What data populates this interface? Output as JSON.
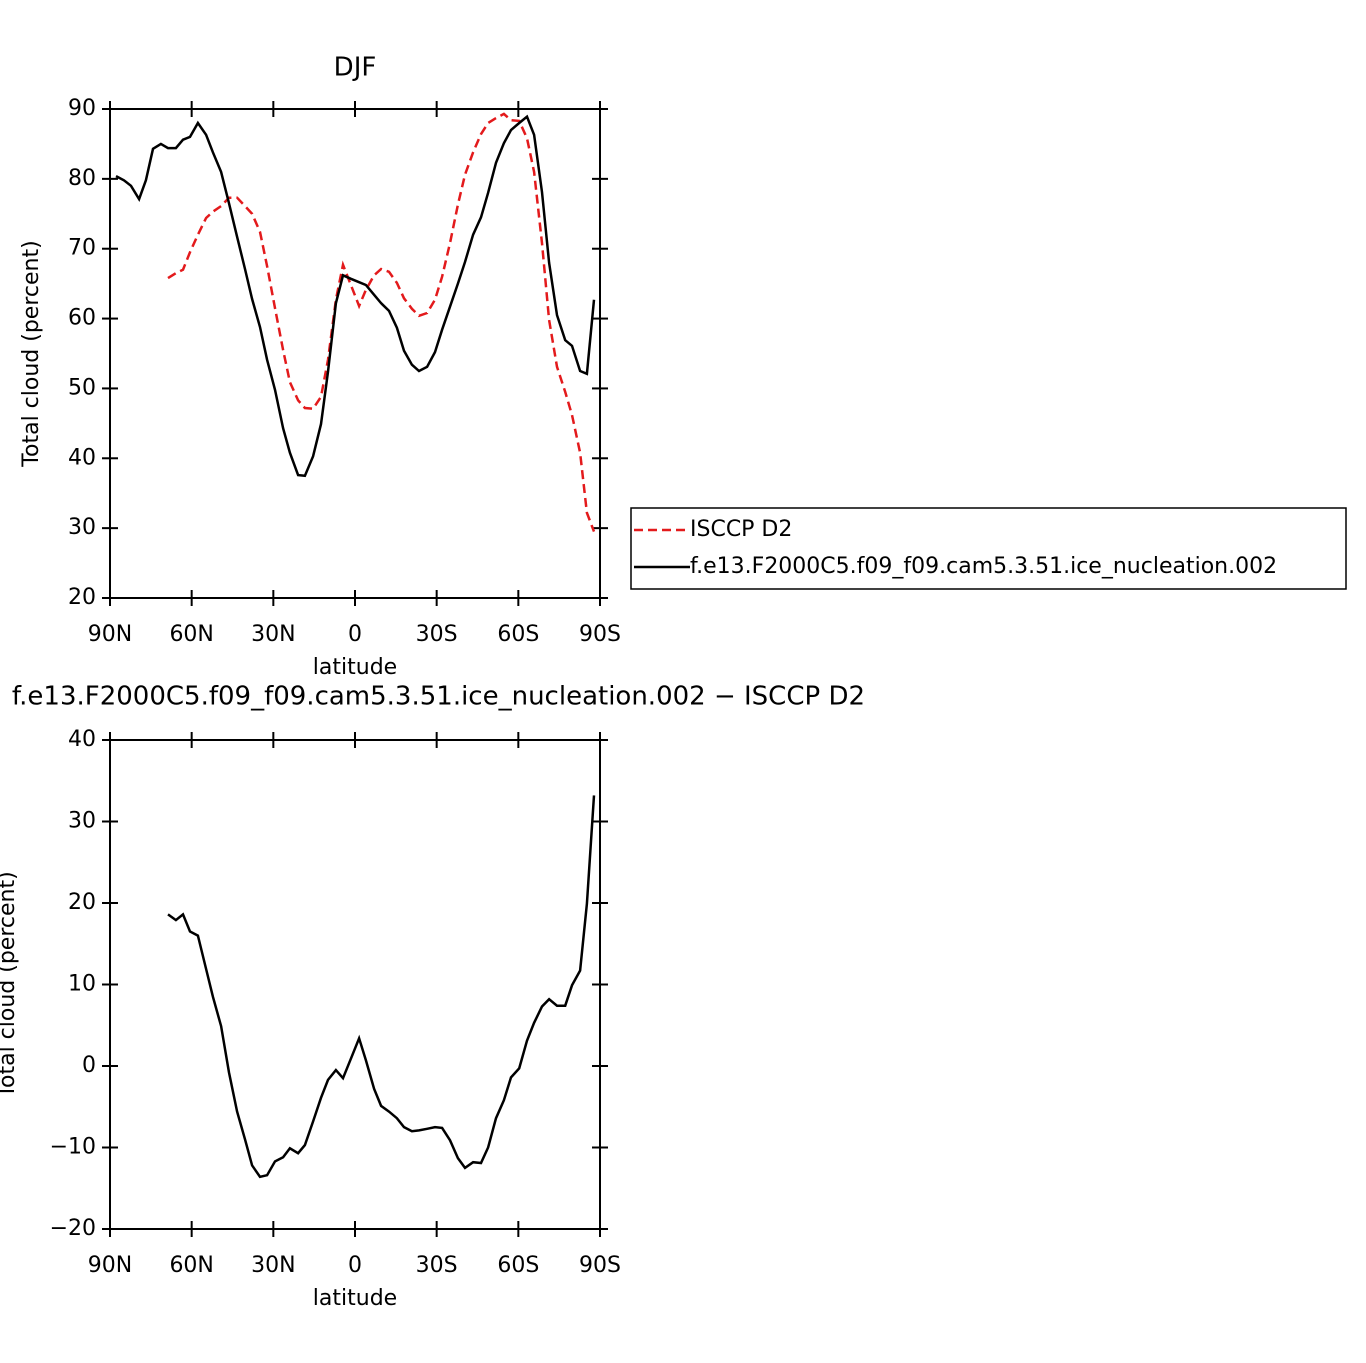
{
  "chart_data": [
    {
      "type": "line",
      "title": "DJF",
      "x_label": "latitude",
      "y_label": "Total cloud (percent)",
      "xlim": [
        90,
        -90
      ],
      "xticks": [
        {
          "value": 90,
          "label": "90N"
        },
        {
          "value": 60,
          "label": "60N"
        },
        {
          "value": 30,
          "label": "30N"
        },
        0,
        {
          "value": -30,
          "label": "30S"
        },
        {
          "value": -60,
          "label": "60S"
        },
        {
          "value": -90,
          "label": "90S"
        }
      ],
      "ylim": [
        20,
        90
      ],
      "yticks": [
        20,
        30,
        40,
        50,
        60,
        70,
        80,
        90
      ],
      "legend": "right",
      "x": [
        87.8,
        84.9,
        82.3,
        79.3,
        76.8,
        74.2,
        71.3,
        68.7,
        65.8,
        63.2,
        60.6,
        57.7,
        54.7,
        52.2,
        49.2,
        46.3,
        43.3,
        40.4,
        37.8,
        34.9,
        32.3,
        29.4,
        26.4,
        23.9,
        20.9,
        18.4,
        15.4,
        12.5,
        9.9,
        7.0,
        4.4,
        1.5,
        -1.5,
        -4.0,
        -7.0,
        -9.6,
        -12.5,
        -15.4,
        -18.0,
        -20.9,
        -23.5,
        -26.5,
        -29.4,
        -32.0,
        -34.9,
        -37.8,
        -40.4,
        -43.4,
        -46.3,
        -48.9,
        -51.8,
        -54.7,
        -57.3,
        -60.3,
        -63.2,
        -65.8,
        -68.7,
        -71.3,
        -74.2,
        -77.2,
        -79.7,
        -82.7,
        -85.2,
        -87.8
      ],
      "series": [
        {
          "name": "ISCCP D2",
          "color": "#e31a1c",
          "line_style": "dashed",
          "values": [
            null,
            null,
            null,
            null,
            null,
            null,
            null,
            65.8,
            66.5,
            67.0,
            69.5,
            72.0,
            74.4,
            75.3,
            76.1,
            77.3,
            77.3,
            76.1,
            75.0,
            72.4,
            67.5,
            61.5,
            55.5,
            50.9,
            48.3,
            47.2,
            47.1,
            48.8,
            54.1,
            62.7,
            67.7,
            64.8,
            61.8,
            64.1,
            66.2,
            67.1,
            66.7,
            65.1,
            62.9,
            61.4,
            60.4,
            60.8,
            62.7,
            66.0,
            70.8,
            76.3,
            80.6,
            83.8,
            86.4,
            88.0,
            88.7,
            89.3,
            88.4,
            88.3,
            85.8,
            81.0,
            70.8,
            59.8,
            53.1,
            49.5,
            46.2,
            40.8,
            32.2,
            29.5
          ]
        },
        {
          "name": "f.e13.F2000C5.f09_f09.cam5.3.51.ice_nucleation.002",
          "color": "#000000",
          "line_style": "solid",
          "values": [
            80.4,
            79.8,
            79.0,
            77.1,
            79.8,
            84.3,
            85.0,
            84.4,
            84.4,
            85.6,
            86.0,
            88.0,
            86.3,
            83.8,
            81.0,
            76.5,
            71.7,
            67.1,
            62.8,
            58.8,
            54.1,
            49.8,
            44.3,
            40.8,
            37.6,
            37.5,
            40.3,
            44.9,
            52.4,
            62.2,
            66.2,
            65.7,
            65.2,
            64.8,
            63.4,
            62.2,
            61.1,
            58.7,
            55.4,
            53.4,
            52.5,
            53.1,
            55.2,
            58.4,
            61.7,
            65.0,
            68.1,
            72.0,
            74.5,
            78.0,
            82.3,
            85.1,
            87.0,
            88.0,
            88.9,
            86.3,
            78.1,
            68.0,
            60.5,
            56.9,
            56.1,
            52.5,
            52.1,
            62.7
          ]
        }
      ]
    },
    {
      "type": "line",
      "title": "f.e13.F2000C5.f09_f09.cam5.3.51.ice_nucleation.002 − ISCCP D2",
      "x_label": "latitude",
      "y_label": "Total cloud (percent)",
      "xlim": [
        90,
        -90
      ],
      "xticks": [
        {
          "value": 90,
          "label": "90N"
        },
        {
          "value": 60,
          "label": "60N"
        },
        {
          "value": 30,
          "label": "30N"
        },
        0,
        {
          "value": -30,
          "label": "30S"
        },
        {
          "value": -60,
          "label": "60S"
        },
        {
          "value": -90,
          "label": "90S"
        }
      ],
      "ylim": [
        -20,
        40
      ],
      "yticks": [
        {
          "value": -20,
          "label": "−20"
        },
        {
          "value": -10,
          "label": "−10"
        },
        0,
        10,
        20,
        30,
        40
      ],
      "x": [
        87.8,
        84.9,
        82.3,
        79.3,
        76.8,
        74.2,
        71.3,
        68.7,
        65.8,
        63.2,
        60.6,
        57.7,
        54.7,
        52.2,
        49.2,
        46.3,
        43.3,
        40.4,
        37.8,
        34.9,
        32.3,
        29.4,
        26.4,
        23.9,
        20.9,
        18.4,
        15.4,
        12.5,
        9.9,
        7.0,
        4.4,
        1.5,
        -1.5,
        -4.0,
        -7.0,
        -9.6,
        -12.5,
        -15.4,
        -18.0,
        -20.9,
        -23.5,
        -26.5,
        -29.4,
        -32.0,
        -34.9,
        -37.8,
        -40.4,
        -43.4,
        -46.3,
        -48.9,
        -51.8,
        -54.7,
        -57.3,
        -60.3,
        -63.2,
        -65.8,
        -68.7,
        -71.3,
        -74.2,
        -77.2,
        -79.7,
        -82.7,
        -85.2,
        -87.8
      ],
      "series": [
        {
          "color": "#000000",
          "line_style": "solid",
          "values": [
            null,
            null,
            null,
            null,
            null,
            null,
            null,
            18.6,
            17.9,
            18.6,
            16.5,
            16.0,
            11.9,
            8.5,
            4.9,
            -0.8,
            -5.6,
            -9.0,
            -12.2,
            -13.6,
            -13.4,
            -11.7,
            -11.2,
            -10.1,
            -10.7,
            -9.7,
            -6.8,
            -3.9,
            -1.7,
            -0.5,
            -1.5,
            0.9,
            3.4,
            0.7,
            -2.8,
            -4.9,
            -5.6,
            -6.4,
            -7.5,
            -8.0,
            -7.9,
            -7.7,
            -7.5,
            -7.6,
            -9.1,
            -11.3,
            -12.5,
            -11.8,
            -11.9,
            -10.0,
            -6.4,
            -4.2,
            -1.4,
            -0.3,
            3.1,
            5.3,
            7.3,
            8.2,
            7.4,
            7.4,
            9.9,
            11.7,
            19.9,
            33.2
          ]
        }
      ]
    }
  ]
}
